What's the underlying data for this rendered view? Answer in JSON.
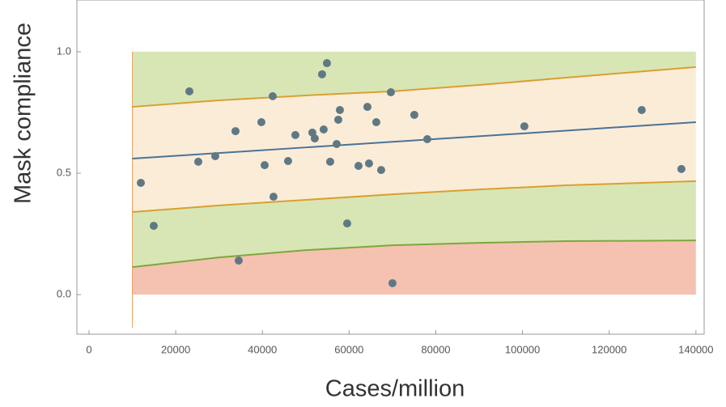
{
  "chart_data": {
    "type": "scatter",
    "x_label": "Cases/million",
    "y_label": "Mask compliance",
    "xlim": [
      -2800,
      141900
    ],
    "ylim": [
      -0.163,
      1.213
    ],
    "xticks": [
      0,
      20000,
      40000,
      60000,
      80000,
      100000,
      120000,
      140000
    ],
    "yticks": [
      {
        "value": 0,
        "label": "0.0"
      },
      {
        "value": 0.5,
        "label": "0.5"
      },
      {
        "value": 1,
        "label": "1.0"
      }
    ],
    "fill_range": [
      0,
      1
    ],
    "curve_x": [
      10000,
      30000,
      50000,
      70000,
      90000,
      110000,
      140000
    ],
    "curves": [
      {
        "color": "#7ea73c",
        "values": [
          0.113,
          0.153,
          0.183,
          0.203,
          0.213,
          0.22,
          0.223
        ]
      },
      {
        "color": "#d9a030",
        "values": [
          0.34,
          0.367,
          0.39,
          0.413,
          0.433,
          0.45,
          0.467
        ]
      },
      {
        "color": "#4a7396",
        "values": [
          0.56,
          0.583,
          0.606,
          0.629,
          0.652,
          0.675,
          0.71
        ]
      },
      {
        "color": "#d9a030",
        "values": [
          0.773,
          0.8,
          0.82,
          0.837,
          0.863,
          0.893,
          0.937
        ]
      }
    ],
    "band_colors": [
      "#f5c2b2",
      "#d8e6b6",
      "#fbecd8",
      "#d8e6b6"
    ],
    "point_color": "#5f7984",
    "x": [
      11950,
      14930,
      23150,
      25200,
      29120,
      33790,
      34530,
      39760,
      40510,
      42370,
      42560,
      45920,
      47600,
      51520,
      52080,
      53760,
      54130,
      54880,
      55630,
      57120,
      57500,
      57870,
      59550,
      62160,
      64220,
      64590,
      66270,
      67390,
      69630,
      70000,
      75040,
      78030,
      100430,
      127500,
      136650
    ],
    "values": [
      0.46,
      0.283,
      0.837,
      0.547,
      0.57,
      0.673,
      0.14,
      0.71,
      0.533,
      0.817,
      0.403,
      0.55,
      0.657,
      0.667,
      0.643,
      0.907,
      0.68,
      0.953,
      0.547,
      0.62,
      0.72,
      0.76,
      0.293,
      0.53,
      0.773,
      0.54,
      0.71,
      0.513,
      0.833,
      0.047,
      0.74,
      0.64,
      0.693,
      0.76,
      0.517
    ]
  }
}
